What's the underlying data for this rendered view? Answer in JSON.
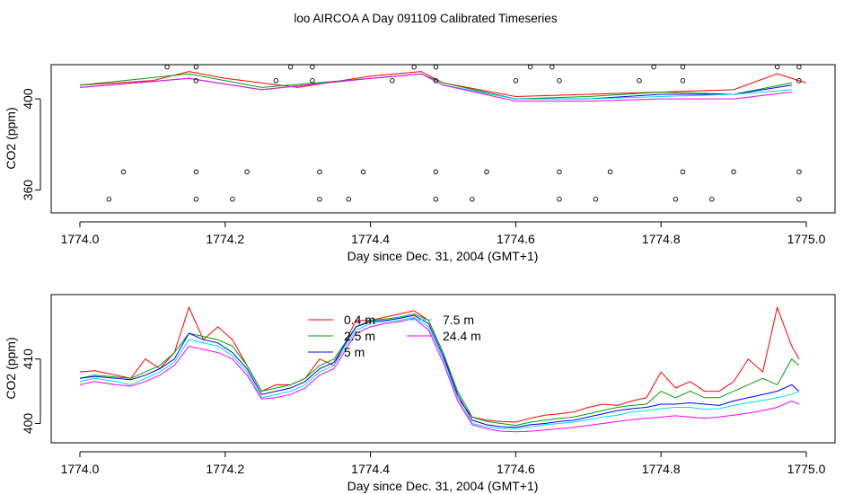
{
  "title": "loo AIRCOA A  Day 091109  Calibrated Timeseries",
  "chart_data": [
    {
      "type": "scatter",
      "xlabel": "Day since Dec. 31, 2004 (GMT+1)",
      "ylabel": "CO2 (ppm)",
      "xlim": [
        1774.0,
        1775.0
      ],
      "ylim": [
        350,
        415
      ],
      "xticks": [
        "1774.0",
        "1774.2",
        "1774.4",
        "1774.6",
        "1774.8",
        "1775.0"
      ],
      "yticks": [
        "360",
        "400"
      ],
      "ytick_values": [
        360,
        400
      ],
      "series": [
        {
          "color": "#ff0000",
          "x": [
            1774.0,
            1774.1,
            1774.15,
            1774.2,
            1774.3,
            1774.4,
            1774.47,
            1774.5,
            1774.6,
            1774.7,
            1774.8,
            1774.9,
            1774.96,
            1775.0
          ],
          "y": [
            406,
            408,
            412,
            409,
            405,
            410,
            412,
            407,
            401,
            402,
            403,
            404,
            411,
            407
          ]
        },
        {
          "color": "#00a000",
          "x": [
            1774.0,
            1774.15,
            1774.25,
            1774.4,
            1774.47,
            1774.5,
            1774.6,
            1774.7,
            1774.8,
            1774.9,
            1774.98
          ],
          "y": [
            406,
            411,
            405,
            409,
            411,
            407,
            400,
            401,
            403,
            402,
            407
          ]
        },
        {
          "color": "#0000ff",
          "x": [
            1774.0,
            1774.15,
            1774.25,
            1774.4,
            1774.47,
            1774.5,
            1774.6,
            1774.7,
            1774.8,
            1774.9,
            1774.98
          ],
          "y": [
            405,
            409,
            404,
            409,
            411,
            406,
            400,
            400,
            402,
            402,
            406
          ]
        },
        {
          "color": "#00e0e0",
          "x": [
            1774.0,
            1774.15,
            1774.25,
            1774.4,
            1774.47,
            1774.5,
            1774.6,
            1774.7,
            1774.8,
            1774.9,
            1774.98
          ],
          "y": [
            405,
            409,
            404,
            409,
            411,
            406,
            400,
            400,
            401,
            402,
            404
          ]
        },
        {
          "color": "#ff00ff",
          "x": [
            1774.0,
            1774.15,
            1774.25,
            1774.4,
            1774.47,
            1774.5,
            1774.6,
            1774.7,
            1774.8,
            1774.9,
            1774.98
          ],
          "y": [
            405,
            409,
            404,
            409,
            411,
            406,
            399,
            399,
            400,
            400,
            403
          ]
        }
      ],
      "points": {
        "x": [
          1774.12,
          1774.16,
          1774.29,
          1774.32,
          1774.46,
          1774.49,
          1774.62,
          1774.65,
          1774.79,
          1774.83,
          1774.96,
          1774.99,
          1774.16,
          1774.27,
          1774.32,
          1774.43,
          1774.49,
          1774.6,
          1774.66,
          1774.77,
          1774.83,
          1774.99,
          1774.06,
          1774.16,
          1774.23,
          1774.33,
          1774.39,
          1774.49,
          1774.56,
          1774.66,
          1774.73,
          1774.83,
          1774.9,
          1774.99,
          1774.04,
          1774.16,
          1774.21,
          1774.33,
          1774.37,
          1774.49,
          1774.54,
          1774.66,
          1774.71,
          1774.82,
          1774.87,
          1774.99
        ],
        "y": [
          414,
          414,
          414,
          414,
          414,
          414,
          414,
          414,
          414,
          414,
          414,
          414,
          408,
          408,
          408,
          408,
          408,
          408,
          408,
          408,
          408,
          408,
          368,
          368,
          368,
          368,
          368,
          368,
          368,
          368,
          368,
          368,
          368,
          368,
          356,
          356,
          356,
          356,
          356,
          356,
          356,
          356,
          356,
          356,
          356,
          356
        ]
      }
    },
    {
      "type": "line",
      "xlabel": "Day since Dec. 31, 2004 (GMT+1)",
      "ylabel": "CO2 (ppm)",
      "xlim": [
        1774.0,
        1775.0
      ],
      "ylim": [
        397,
        420
      ],
      "xticks": [
        "1774.0",
        "1774.2",
        "1774.4",
        "1774.6",
        "1774.8",
        "1775.0"
      ],
      "yticks": [
        "400",
        "410"
      ],
      "ytick_values": [
        400,
        410
      ],
      "legend_position": "top-center",
      "series": [
        {
          "name": "0.4 m",
          "color": "#ff0000",
          "x": [
            1774.0,
            1774.02,
            1774.05,
            1774.07,
            1774.09,
            1774.11,
            1774.13,
            1774.15,
            1774.17,
            1774.19,
            1774.21,
            1774.23,
            1774.25,
            1774.27,
            1774.29,
            1774.31,
            1774.33,
            1774.35,
            1774.38,
            1774.4,
            1774.42,
            1774.44,
            1774.46,
            1774.48,
            1774.5,
            1774.52,
            1774.54,
            1774.56,
            1774.58,
            1774.6,
            1774.62,
            1774.64,
            1774.66,
            1774.68,
            1774.7,
            1774.72,
            1774.74,
            1774.76,
            1774.78,
            1774.8,
            1774.82,
            1774.84,
            1774.86,
            1774.88,
            1774.9,
            1774.92,
            1774.94,
            1774.96,
            1774.98,
            1774.99
          ],
          "y": [
            408,
            408.2,
            407.5,
            407,
            410,
            408.5,
            411,
            418,
            413,
            415,
            413,
            409,
            405,
            406,
            406,
            407,
            410,
            409,
            416,
            416,
            416.5,
            417,
            417.5,
            416,
            411,
            404,
            401,
            400.5,
            400.3,
            400.2,
            400.8,
            401.3,
            401.5,
            401.8,
            402.5,
            403,
            402.8,
            403.5,
            404,
            408,
            405.5,
            406.5,
            405,
            405,
            406.5,
            410,
            408,
            418,
            412,
            410
          ]
        },
        {
          "name": "2.5 m",
          "color": "#00a000",
          "x": [
            1774.0,
            1774.02,
            1774.05,
            1774.07,
            1774.09,
            1774.11,
            1774.13,
            1774.15,
            1774.17,
            1774.19,
            1774.21,
            1774.23,
            1774.25,
            1774.27,
            1774.29,
            1774.31,
            1774.33,
            1774.35,
            1774.38,
            1774.4,
            1774.42,
            1774.44,
            1774.46,
            1774.48,
            1774.5,
            1774.52,
            1774.54,
            1774.56,
            1774.58,
            1774.6,
            1774.62,
            1774.64,
            1774.66,
            1774.68,
            1774.7,
            1774.72,
            1774.74,
            1774.76,
            1774.78,
            1774.8,
            1774.82,
            1774.84,
            1774.86,
            1774.88,
            1774.9,
            1774.92,
            1774.94,
            1774.96,
            1774.98,
            1774.99
          ],
          "y": [
            407,
            407.5,
            407.2,
            407,
            408,
            409,
            411,
            414,
            413.5,
            413,
            412,
            409,
            405,
            405.5,
            406,
            407,
            409,
            410,
            415,
            416,
            416.2,
            416.5,
            417,
            416,
            411,
            405,
            401,
            400.3,
            400,
            399.7,
            400.2,
            400.5,
            400.8,
            401,
            401.5,
            402,
            402.5,
            402.8,
            403,
            405,
            404,
            405,
            404,
            404,
            405,
            406,
            407,
            406,
            410,
            409
          ]
        },
        {
          "name": "5 m",
          "color": "#0000ff",
          "x": [
            1774.0,
            1774.02,
            1774.05,
            1774.07,
            1774.09,
            1774.11,
            1774.13,
            1774.15,
            1774.17,
            1774.19,
            1774.21,
            1774.23,
            1774.25,
            1774.27,
            1774.29,
            1774.31,
            1774.33,
            1774.35,
            1774.38,
            1774.4,
            1774.42,
            1774.44,
            1774.46,
            1774.48,
            1774.5,
            1774.52,
            1774.54,
            1774.56,
            1774.58,
            1774.6,
            1774.62,
            1774.64,
            1774.66,
            1774.68,
            1774.7,
            1774.72,
            1774.74,
            1774.76,
            1774.78,
            1774.8,
            1774.82,
            1774.84,
            1774.86,
            1774.88,
            1774.9,
            1774.92,
            1774.94,
            1774.96,
            1774.98,
            1774.99
          ],
          "y": [
            407,
            407.3,
            407,
            406.8,
            407.5,
            408.5,
            410,
            414,
            413,
            412.5,
            411,
            408.5,
            404.5,
            405,
            405.5,
            406.5,
            408.5,
            409.5,
            415,
            415.8,
            416,
            416.3,
            416.8,
            415.5,
            410.5,
            404.5,
            400.5,
            399.8,
            399.5,
            399.4,
            399.8,
            400,
            400.3,
            400.5,
            401,
            401.5,
            402,
            402.3,
            402.5,
            403,
            403,
            403.2,
            403,
            402.8,
            403.5,
            404,
            404.5,
            405,
            406,
            405
          ]
        },
        {
          "name": "7.5 m",
          "color": "#00e0e0",
          "x": [
            1774.0,
            1774.02,
            1774.05,
            1774.07,
            1774.09,
            1774.11,
            1774.13,
            1774.15,
            1774.17,
            1774.19,
            1774.21,
            1774.23,
            1774.25,
            1774.27,
            1774.29,
            1774.31,
            1774.33,
            1774.35,
            1774.38,
            1774.4,
            1774.42,
            1774.44,
            1774.46,
            1774.48,
            1774.5,
            1774.52,
            1774.54,
            1774.56,
            1774.58,
            1774.6,
            1774.62,
            1774.64,
            1774.66,
            1774.68,
            1774.7,
            1774.72,
            1774.74,
            1774.76,
            1774.78,
            1774.8,
            1774.82,
            1774.84,
            1774.86,
            1774.88,
            1774.9,
            1774.92,
            1774.94,
            1774.96,
            1774.98,
            1774.99
          ],
          "y": [
            406.5,
            407,
            406.5,
            406,
            407,
            408,
            409.5,
            413,
            412.5,
            412,
            410.5,
            408,
            404,
            404.5,
            405,
            406,
            408,
            409,
            414.5,
            415.5,
            415.8,
            416,
            416.5,
            415,
            410,
            404,
            400,
            399.5,
            399.2,
            399.2,
            399.5,
            399.8,
            400,
            400.2,
            400.6,
            401,
            401.3,
            401.8,
            402,
            402.3,
            402.5,
            402.5,
            402.2,
            402.3,
            402.8,
            403.2,
            403.6,
            404,
            404.5,
            405
          ]
        },
        {
          "name": "24.4 m",
          "color": "#ff00ff",
          "x": [
            1774.0,
            1774.02,
            1774.05,
            1774.07,
            1774.09,
            1774.11,
            1774.13,
            1774.15,
            1774.17,
            1774.19,
            1774.21,
            1774.23,
            1774.25,
            1774.27,
            1774.29,
            1774.31,
            1774.33,
            1774.35,
            1774.38,
            1774.4,
            1774.42,
            1774.44,
            1774.46,
            1774.48,
            1774.5,
            1774.52,
            1774.54,
            1774.56,
            1774.58,
            1774.6,
            1774.62,
            1774.64,
            1774.66,
            1774.68,
            1774.7,
            1774.72,
            1774.74,
            1774.76,
            1774.78,
            1774.8,
            1774.82,
            1774.84,
            1774.86,
            1774.88,
            1774.9,
            1774.92,
            1774.94,
            1774.96,
            1774.98,
            1774.99
          ],
          "y": [
            406,
            406.5,
            406,
            405.8,
            406.5,
            407.5,
            409,
            412,
            411.5,
            411,
            410,
            407.5,
            403.8,
            404,
            404.5,
            405.5,
            407.5,
            408.5,
            414,
            415,
            415.5,
            415.8,
            416.3,
            414.5,
            409.5,
            403.5,
            399.8,
            399.2,
            398.8,
            398.7,
            398.8,
            399,
            399.2,
            399.4,
            399.7,
            400,
            400.3,
            400.6,
            400.8,
            401,
            401.2,
            401,
            400.8,
            401,
            401.3,
            401.6,
            402,
            402.5,
            403.5,
            403
          ]
        }
      ]
    }
  ]
}
